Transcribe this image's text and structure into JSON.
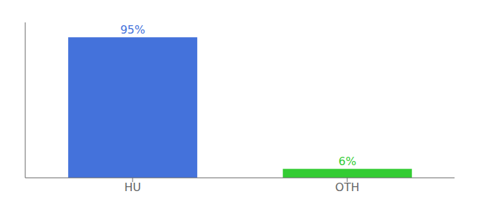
{
  "chart_data": {
    "type": "bar",
    "categories": [
      "HU",
      "OTH"
    ],
    "values": [
      95,
      6
    ],
    "value_labels": [
      "95%",
      "6%"
    ],
    "colors": [
      "#4472db",
      "#33cc33"
    ],
    "ylim": [
      0,
      105
    ],
    "data_labels": true,
    "tick_labels": "x",
    "grid": false
  }
}
